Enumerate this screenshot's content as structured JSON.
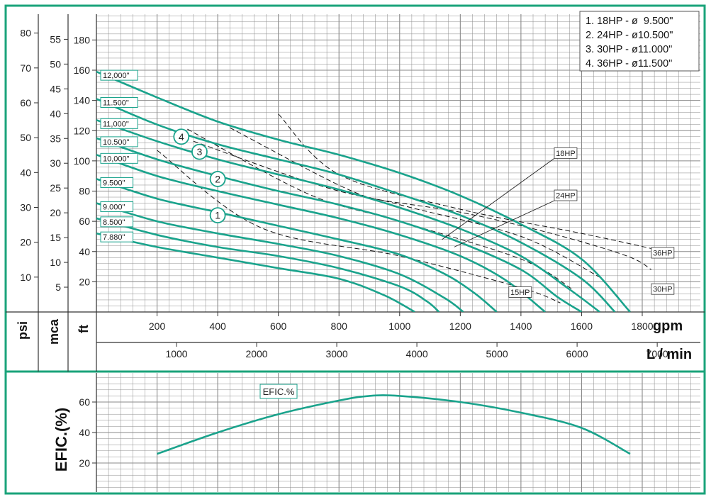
{
  "colors": {
    "frame": "#1aa37a",
    "curve": "#1aa38c",
    "grid": "#8a8a8a",
    "dash": "#111111"
  },
  "units": {
    "psi": "psi",
    "mca": "mca",
    "ft": "ft",
    "gpm": "gpm",
    "lmin": "L / min",
    "efic": "EFIC.(%)"
  },
  "legend": [
    "1. 18HP - ø  9.500\"",
    "2. 24HP - ø10.500\"",
    "3. 30HP - ø11.000\"",
    "4. 36HP - ø11.500\""
  ],
  "chart_data": [
    {
      "type": "line",
      "title": "",
      "xlabel": "gpm",
      "ylabel": "ft",
      "xlim": [
        0,
        1960
      ],
      "ylim": [
        0,
        196
      ],
      "x_ticks": [
        200,
        400,
        600,
        800,
        1000,
        1200,
        1400,
        1600,
        1800
      ],
      "x2_ticks_lmin": [
        1000,
        2000,
        3000,
        4000,
        5000,
        6000,
        7000
      ],
      "y_ticks_ft": [
        20,
        40,
        60,
        80,
        100,
        120,
        140,
        160,
        180
      ],
      "y_ticks_mca": [
        5,
        10,
        15,
        20,
        25,
        30,
        35,
        40,
        45,
        50,
        55
      ],
      "y_ticks_psi": [
        10,
        20,
        30,
        40,
        50,
        60,
        70,
        80
      ],
      "grid": true,
      "series": [
        {
          "name": "12,000\"",
          "points": [
            [
              0,
              159
            ],
            [
              200,
              142
            ],
            [
              400,
              126
            ],
            [
              600,
              114
            ],
            [
              800,
              104
            ],
            [
              1000,
              92
            ],
            [
              1200,
              77
            ],
            [
              1400,
              58
            ],
            [
              1600,
              35
            ],
            [
              1760,
              0
            ]
          ]
        },
        {
          "name": "11.500\"",
          "points": [
            [
              0,
              141
            ],
            [
              200,
              124
            ],
            [
              400,
              111
            ],
            [
              600,
              101
            ],
            [
              800,
              91
            ],
            [
              1000,
              78
            ],
            [
              1200,
              64
            ],
            [
              1400,
              46
            ],
            [
              1600,
              22
            ],
            [
              1710,
              0
            ]
          ]
        },
        {
          "name": "11,000\"",
          "points": [
            [
              0,
              127
            ],
            [
              200,
              113
            ],
            [
              400,
              101
            ],
            [
              600,
              91
            ],
            [
              800,
              81
            ],
            [
              1000,
              69
            ],
            [
              1200,
              55
            ],
            [
              1400,
              37
            ],
            [
              1560,
              15
            ],
            [
              1660,
              0
            ]
          ]
        },
        {
          "name": "10.500\"",
          "points": [
            [
              0,
              115
            ],
            [
              200,
              101
            ],
            [
              400,
              90
            ],
            [
              600,
              80
            ],
            [
              800,
              71
            ],
            [
              1000,
              60
            ],
            [
              1200,
              46
            ],
            [
              1400,
              28
            ],
            [
              1520,
              10
            ],
            [
              1600,
              0
            ]
          ]
        },
        {
          "name": "10,000\"",
          "points": [
            [
              0,
              104
            ],
            [
              200,
              90
            ],
            [
              400,
              80
            ],
            [
              600,
              71
            ],
            [
              800,
              62
            ],
            [
              1000,
              51
            ],
            [
              1200,
              37
            ],
            [
              1350,
              21
            ],
            [
              1480,
              0
            ]
          ]
        },
        {
          "name": "9.500\"",
          "points": [
            [
              0,
              88
            ],
            [
              200,
              75
            ],
            [
              400,
              66
            ],
            [
              600,
              57
            ],
            [
              800,
              48
            ],
            [
              1000,
              38
            ],
            [
              1150,
              25
            ],
            [
              1250,
              12
            ],
            [
              1320,
              0
            ]
          ]
        },
        {
          "name": "9.000\"",
          "points": [
            [
              0,
              72
            ],
            [
              200,
              60
            ],
            [
              400,
              52
            ],
            [
              600,
              45
            ],
            [
              800,
              37
            ],
            [
              1000,
              25
            ],
            [
              1150,
              9
            ],
            [
              1210,
              0
            ]
          ]
        },
        {
          "name": "8.500\"",
          "points": [
            [
              0,
              62
            ],
            [
              200,
              51
            ],
            [
              400,
              43
            ],
            [
              600,
              37
            ],
            [
              800,
              29
            ],
            [
              1000,
              17
            ],
            [
              1090,
              7
            ],
            [
              1130,
              0
            ]
          ]
        },
        {
          "name": "7.880\"",
          "points": [
            [
              0,
              52
            ],
            [
              200,
              43
            ],
            [
              400,
              36
            ],
            [
              600,
              29
            ],
            [
              800,
              22
            ],
            [
              950,
              11
            ],
            [
              1050,
              0
            ]
          ]
        }
      ],
      "curve_markers": [
        {
          "label": "1",
          "x": 400,
          "y": 64
        },
        {
          "label": "2",
          "x": 400,
          "y": 88
        },
        {
          "label": "3",
          "x": 340,
          "y": 106
        },
        {
          "label": "4",
          "x": 280,
          "y": 116
        }
      ],
      "power_lines": [
        {
          "name": "15HP",
          "points": [
            [
              200,
              107
            ],
            [
              540,
              56
            ],
            [
              1000,
              37
            ],
            [
              1400,
              16
            ],
            [
              1530,
              6
            ]
          ],
          "label_at": [
            1360,
            12
          ]
        },
        {
          "name": "18HP",
          "points": [
            [
              300,
              121
            ],
            [
              700,
              78
            ],
            [
              1000,
              60
            ],
            [
              1400,
              35
            ],
            [
              1570,
              15
            ]
          ],
          "label_at": [
            1510,
            104
          ]
        },
        {
          "name": "24HP",
          "points": [
            [
              440,
              122
            ],
            [
              820,
              82
            ],
            [
              1000,
              71
            ],
            [
              1400,
              50
            ],
            [
              1660,
              23
            ]
          ],
          "label_at": [
            1510,
            76
          ]
        },
        {
          "name": "30HP",
          "points": [
            [
              320,
              113
            ],
            [
              800,
              80
            ],
            [
              1200,
              66
            ],
            [
              1500,
              52
            ],
            [
              1750,
              37
            ],
            [
              1830,
              28
            ]
          ],
          "label_at": [
            1830,
            14
          ]
        },
        {
          "name": "36HP",
          "points": [
            [
              600,
              131
            ],
            [
              800,
              91
            ],
            [
              1200,
              68
            ],
            [
              1600,
              52
            ],
            [
              1830,
              42
            ]
          ],
          "label_at": [
            1830,
            38
          ]
        }
      ]
    },
    {
      "type": "line",
      "title": "",
      "xlabel": "",
      "ylabel": "EFIC.(%)",
      "xlim": [
        0,
        1960
      ],
      "ylim": [
        0,
        80
      ],
      "y_ticks": [
        20,
        40,
        60
      ],
      "grid": true,
      "series": [
        {
          "name": "EFIC.%",
          "points": [
            [
              200,
              26
            ],
            [
              400,
              40
            ],
            [
              600,
              52
            ],
            [
              800,
              61
            ],
            [
              900,
              64
            ],
            [
              1000,
              64
            ],
            [
              1200,
              60
            ],
            [
              1400,
              53
            ],
            [
              1600,
              43
            ],
            [
              1760,
              26
            ]
          ]
        }
      ]
    }
  ]
}
